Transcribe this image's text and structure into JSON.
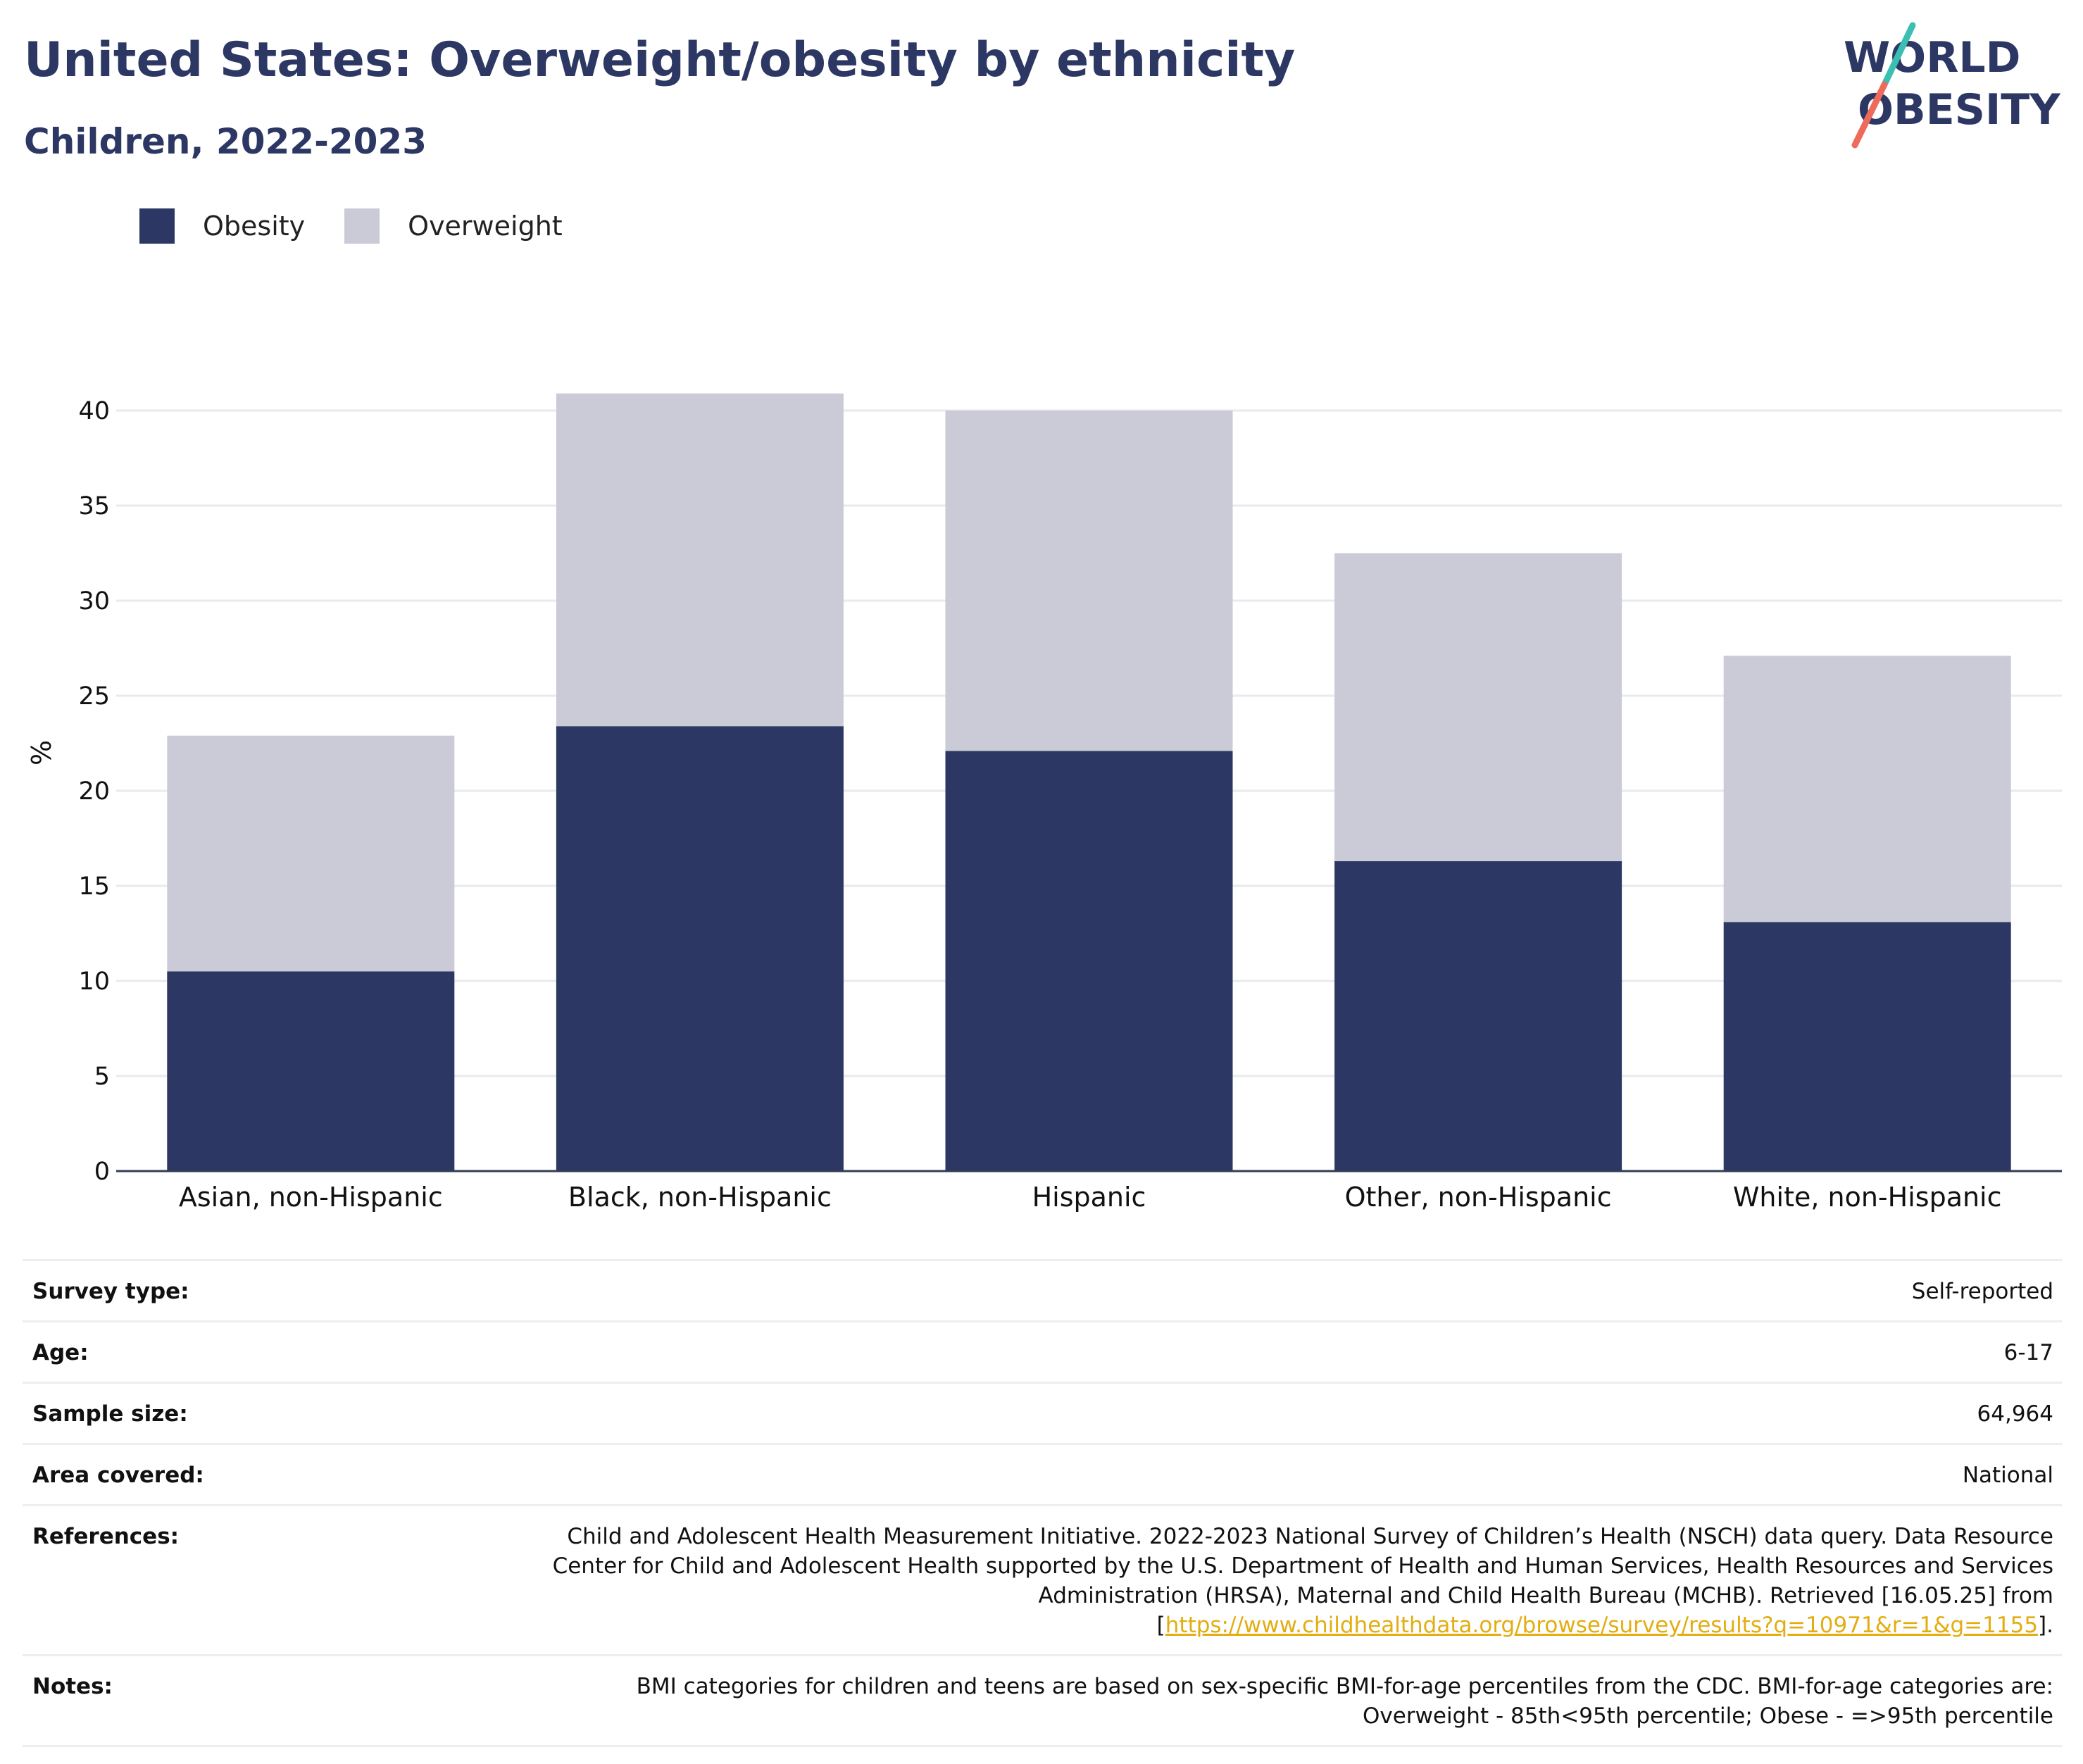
{
  "header": {
    "title": "United States: Overweight/obesity by ethnicity",
    "subtitle": "Children, 2022-2023"
  },
  "logo": {
    "line1": "WORLD",
    "line2": "OBESITY",
    "primary_color": "#2c3763",
    "accent_teal": "#3bbfb2",
    "accent_coral": "#ee6a5b"
  },
  "legend": {
    "items": [
      {
        "label": "Obesity",
        "color": "#2c3763"
      },
      {
        "label": "Overweight",
        "color": "#cacbd6"
      }
    ]
  },
  "chart_data": {
    "type": "bar",
    "stacked": true,
    "categories": [
      "Asian, non-Hispanic",
      "Black, non-Hispanic",
      "Hispanic",
      "Other, non-Hispanic",
      "White, non-Hispanic"
    ],
    "series": [
      {
        "name": "Obesity",
        "color": "#2c3763",
        "values": [
          10.5,
          23.4,
          22.1,
          16.3,
          13.1
        ]
      },
      {
        "name": "Overweight",
        "color": "#cacbd6",
        "values": [
          12.4,
          17.5,
          17.9,
          16.2,
          14.0
        ]
      }
    ],
    "ylabel": "%",
    "xlabel": "",
    "ylim": [
      0,
      42
    ],
    "yticks": [
      0,
      5,
      10,
      15,
      20,
      25,
      30,
      35,
      40
    ],
    "grid": true,
    "legend_position": "top-left"
  },
  "meta": {
    "survey_type": {
      "label": "Survey type:",
      "value": "Self-reported"
    },
    "age": {
      "label": "Age:",
      "value": "6-17"
    },
    "sample_size": {
      "label": "Sample size:",
      "value": "64,964"
    },
    "area_covered": {
      "label": "Area covered:",
      "value": "National"
    },
    "references": {
      "label": "References:",
      "text": "Child and Adolescent Health Measurement Initiative. 2022-2023 National Survey of Children’s Health (NSCH) data query. Data Resource Center for Child and Adolescent Health supported by the U.S. Department of Health and Human Services, Health Resources and Services Administration (HRSA), Maternal and Child Health Bureau (MCHB). Retrieved [16.05.25] from [",
      "link": "https://www.childhealthdata.org/browse/survey/results?q=10971&r=1&g=1155",
      "suffix": "]."
    },
    "notes": {
      "label": "Notes:",
      "value": "BMI categories for children and teens are based on sex-specific BMI-for-age percentiles from the CDC. BMI-for-age categories are: Overweight - 85th<95th percentile; Obese - =>95th percentile"
    }
  }
}
